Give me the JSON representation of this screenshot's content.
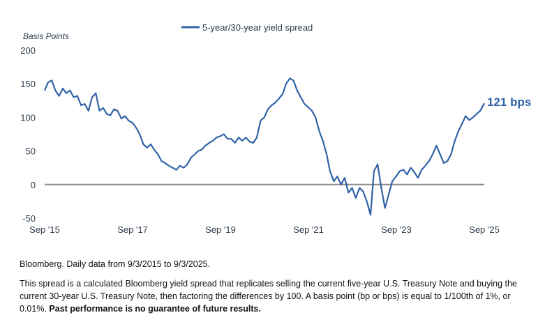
{
  "chart_data": {
    "type": "line",
    "ylabel": "Basis Points",
    "ylim": [
      -50,
      200
    ],
    "yticks": [
      200,
      150,
      100,
      50,
      0,
      -50
    ],
    "xlim": [
      "2015-09-03",
      "2025-09-03"
    ],
    "xticks": [
      {
        "label": "Sep '15",
        "date": "2015-09-03"
      },
      {
        "label": "Sep '17",
        "date": "2017-09-03"
      },
      {
        "label": "Sep '19",
        "date": "2019-09-03"
      },
      {
        "label": "Sep '21",
        "date": "2021-09-03"
      },
      {
        "label": "Sep '23",
        "date": "2023-09-03"
      },
      {
        "label": "Sep '25",
        "date": "2025-09-03"
      }
    ],
    "legend_position": "top",
    "zero_line": true,
    "series": [
      {
        "name": "5-year/30-year yield spread",
        "color": "#3163a8",
        "points": [
          [
            "2015-09-03",
            140
          ],
          [
            "2015-10-01",
            152
          ],
          [
            "2015-11-01",
            155
          ],
          [
            "2015-12-01",
            140
          ],
          [
            "2016-01-01",
            132
          ],
          [
            "2016-02-01",
            143
          ],
          [
            "2016-03-01",
            136
          ],
          [
            "2016-04-01",
            140
          ],
          [
            "2016-05-01",
            130
          ],
          [
            "2016-06-01",
            132
          ],
          [
            "2016-07-01",
            118
          ],
          [
            "2016-08-01",
            120
          ],
          [
            "2016-09-01",
            110
          ],
          [
            "2016-10-01",
            130
          ],
          [
            "2016-11-01",
            136
          ],
          [
            "2016-12-01",
            110
          ],
          [
            "2017-01-01",
            114
          ],
          [
            "2017-02-01",
            105
          ],
          [
            "2017-03-01",
            103
          ],
          [
            "2017-04-01",
            112
          ],
          [
            "2017-05-01",
            110
          ],
          [
            "2017-06-01",
            98
          ],
          [
            "2017-07-01",
            102
          ],
          [
            "2017-08-01",
            95
          ],
          [
            "2017-09-01",
            92
          ],
          [
            "2017-10-01",
            85
          ],
          [
            "2017-11-01",
            75
          ],
          [
            "2017-12-01",
            60
          ],
          [
            "2018-01-01",
            55
          ],
          [
            "2018-02-01",
            60
          ],
          [
            "2018-03-01",
            52
          ],
          [
            "2018-04-01",
            45
          ],
          [
            "2018-05-01",
            35
          ],
          [
            "2018-06-01",
            32
          ],
          [
            "2018-07-01",
            28
          ],
          [
            "2018-08-01",
            25
          ],
          [
            "2018-09-01",
            22
          ],
          [
            "2018-10-01",
            28
          ],
          [
            "2018-11-01",
            25
          ],
          [
            "2018-12-01",
            30
          ],
          [
            "2019-01-01",
            40
          ],
          [
            "2019-02-01",
            45
          ],
          [
            "2019-03-01",
            50
          ],
          [
            "2019-04-01",
            52
          ],
          [
            "2019-05-01",
            58
          ],
          [
            "2019-06-01",
            62
          ],
          [
            "2019-07-01",
            65
          ],
          [
            "2019-08-01",
            70
          ],
          [
            "2019-09-01",
            72
          ],
          [
            "2019-10-01",
            75
          ],
          [
            "2019-11-01",
            68
          ],
          [
            "2019-12-01",
            68
          ],
          [
            "2020-01-01",
            62
          ],
          [
            "2020-02-01",
            70
          ],
          [
            "2020-03-01",
            65
          ],
          [
            "2020-04-01",
            70
          ],
          [
            "2020-05-01",
            64
          ],
          [
            "2020-06-01",
            62
          ],
          [
            "2020-07-01",
            70
          ],
          [
            "2020-08-01",
            95
          ],
          [
            "2020-09-01",
            100
          ],
          [
            "2020-10-01",
            112
          ],
          [
            "2020-11-01",
            118
          ],
          [
            "2020-12-01",
            122
          ],
          [
            "2021-01-01",
            128
          ],
          [
            "2021-02-01",
            135
          ],
          [
            "2021-03-01",
            150
          ],
          [
            "2021-04-01",
            158
          ],
          [
            "2021-05-01",
            155
          ],
          [
            "2021-06-01",
            140
          ],
          [
            "2021-07-01",
            130
          ],
          [
            "2021-08-01",
            120
          ],
          [
            "2021-09-01",
            115
          ],
          [
            "2021-10-01",
            110
          ],
          [
            "2021-11-01",
            100
          ],
          [
            "2021-12-01",
            80
          ],
          [
            "2022-01-01",
            65
          ],
          [
            "2022-02-01",
            45
          ],
          [
            "2022-03-01",
            20
          ],
          [
            "2022-04-01",
            5
          ],
          [
            "2022-05-01",
            12
          ],
          [
            "2022-06-01",
            0
          ],
          [
            "2022-07-01",
            10
          ],
          [
            "2022-08-01",
            -12
          ],
          [
            "2022-09-01",
            -5
          ],
          [
            "2022-10-01",
            -20
          ],
          [
            "2022-11-01",
            -5
          ],
          [
            "2022-12-01",
            -10
          ],
          [
            "2023-01-01",
            -25
          ],
          [
            "2023-02-01",
            -45
          ],
          [
            "2023-03-01",
            20
          ],
          [
            "2023-04-01",
            30
          ],
          [
            "2023-05-01",
            -5
          ],
          [
            "2023-06-01",
            -35
          ],
          [
            "2023-07-01",
            -15
          ],
          [
            "2023-08-01",
            5
          ],
          [
            "2023-09-01",
            12
          ],
          [
            "2023-10-01",
            20
          ],
          [
            "2023-11-01",
            22
          ],
          [
            "2023-12-01",
            15
          ],
          [
            "2024-01-01",
            25
          ],
          [
            "2024-02-01",
            18
          ],
          [
            "2024-03-01",
            10
          ],
          [
            "2024-04-01",
            22
          ],
          [
            "2024-05-01",
            28
          ],
          [
            "2024-06-01",
            35
          ],
          [
            "2024-07-01",
            45
          ],
          [
            "2024-08-01",
            58
          ],
          [
            "2024-09-01",
            45
          ],
          [
            "2024-10-01",
            32
          ],
          [
            "2024-11-01",
            35
          ],
          [
            "2024-12-01",
            45
          ],
          [
            "2025-01-01",
            65
          ],
          [
            "2025-02-01",
            80
          ],
          [
            "2025-03-01",
            90
          ],
          [
            "2025-04-01",
            102
          ],
          [
            "2025-05-01",
            96
          ],
          [
            "2025-06-01",
            100
          ],
          [
            "2025-07-01",
            105
          ],
          [
            "2025-08-01",
            110
          ],
          [
            "2025-09-03",
            121
          ]
        ]
      }
    ],
    "end_label": "121 bps"
  },
  "source_text": "Bloomberg. Daily data from 9/3/2015 to 9/3/2025.",
  "description_text": "This spread is a calculated Bloomberg yield spread that replicates selling the current five-year U.S. Treasury Note and buying the current 30-year U.S. Treasury Note, then factoring the differences by 100. A basis point (bp or bps) is equal to 1/100th of 1%, or 0.01%.",
  "disclaimer_text": "Past performance is no guarantee of future results."
}
